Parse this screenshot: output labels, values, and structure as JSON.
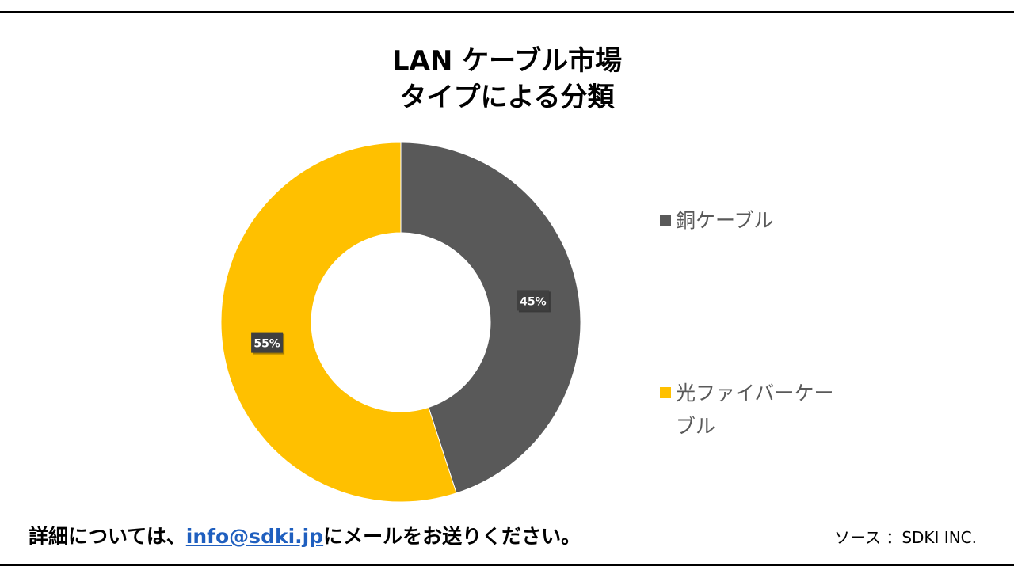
{
  "header": {
    "title_line1": "LAN ケーブル市場",
    "title_line2": "タイプによる分類"
  },
  "chart_data": {
    "type": "pie",
    "variant": "donut",
    "categories": [
      "銅ケーブル",
      "光ファイバーケーブル"
    ],
    "values": [
      45,
      55
    ],
    "data_labels": [
      "45%",
      "55%"
    ],
    "colors": [
      "#595959",
      "#FFC000"
    ],
    "legend_placement": "right",
    "grid": false
  },
  "legend": {
    "items": [
      {
        "label": "銅ケーブル",
        "color": "#595959"
      },
      {
        "label": "光ファイバーケーブル",
        "color": "#FFC000"
      }
    ]
  },
  "footer": {
    "note_prefix": "詳細については、",
    "email": "info@sdki.jp",
    "note_suffix": "にメールをお送りください。",
    "source": "ソース ：SDKI INC."
  }
}
